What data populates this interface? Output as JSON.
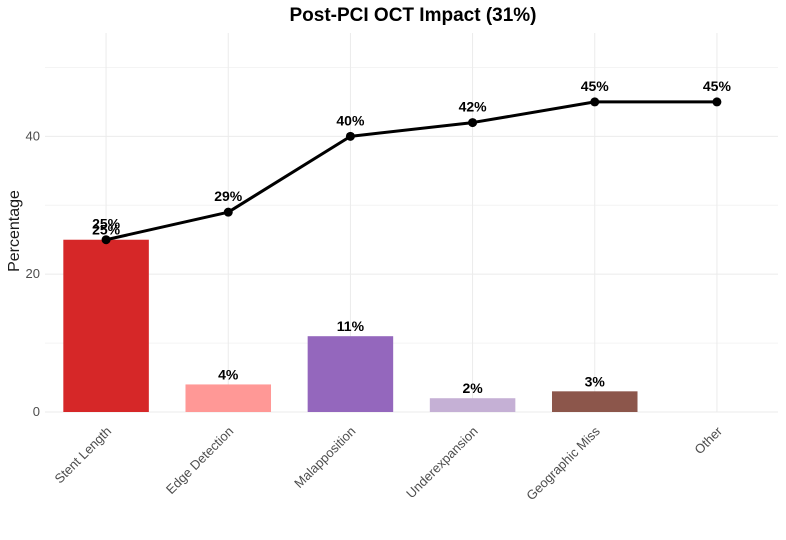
{
  "chart_data": {
    "type": "bar",
    "title": "Post-PCI OCT Impact (31%)",
    "xlabel": "",
    "ylabel": "Percentage",
    "ylim": [
      0,
      55
    ],
    "yticks": [
      0,
      20,
      40
    ],
    "grid": true,
    "categories": [
      "Stent Length",
      "Edge Detection",
      "Malapposition",
      "Underexpansion",
      "Geographic Miss",
      "Other"
    ],
    "series": [
      {
        "name": "Impact",
        "kind": "bar",
        "values": [
          25,
          4,
          11,
          2,
          3,
          0
        ],
        "labels": [
          "25%",
          "4%",
          "11%",
          "2%",
          "3%",
          ""
        ],
        "colors": [
          "#d62728",
          "#ff9896",
          "#9467bd",
          "#c5b0d5",
          "#8c564b",
          "#c49c94"
        ]
      },
      {
        "name": "Cumulative",
        "kind": "line",
        "color": "#000000",
        "values": [
          25,
          29,
          40,
          42,
          45,
          45
        ],
        "labels": [
          "25%",
          "29%",
          "40%",
          "42%",
          "45%",
          "45%"
        ]
      }
    ]
  }
}
